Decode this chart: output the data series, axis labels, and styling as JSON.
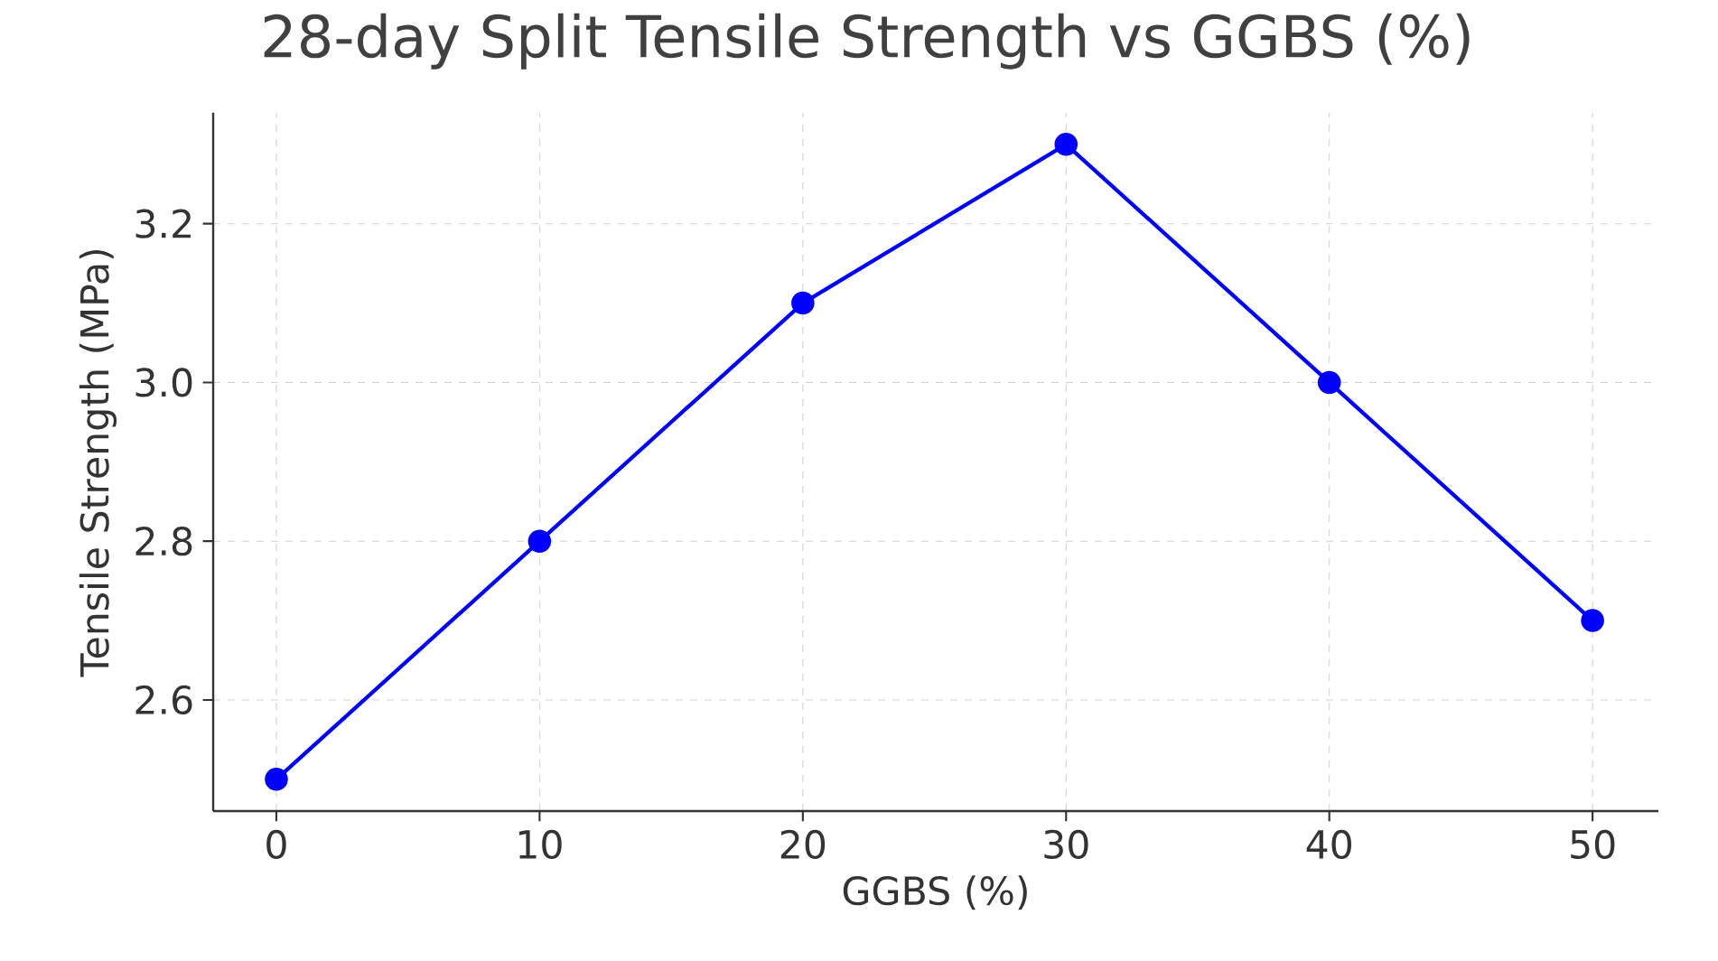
{
  "chart_data": {
    "type": "line",
    "title": "28-day Split Tensile Strength vs GGBS (%)",
    "xlabel": "GGBS (%)",
    "ylabel": "Tensile Strength (MPa)",
    "x": [
      0,
      10,
      20,
      30,
      40,
      50
    ],
    "series": [
      {
        "color": "#0000ff",
        "values": [
          2.5,
          2.8,
          3.1,
          3.3,
          3.0,
          2.7
        ]
      }
    ],
    "xlim": [
      -2.4,
      52.5
    ],
    "ylim": [
      2.46,
      3.34
    ],
    "xticks": [
      0,
      10,
      20,
      30,
      40,
      50
    ],
    "yticks": [
      {
        "value": 2.6,
        "label": "2.6"
      },
      {
        "value": 2.8,
        "label": "2.8"
      },
      {
        "value": 3.0,
        "label": "3.0"
      },
      {
        "value": 3.2,
        "label": "3.2"
      }
    ],
    "grid": true,
    "marker": "circle",
    "line_style": "solid"
  }
}
